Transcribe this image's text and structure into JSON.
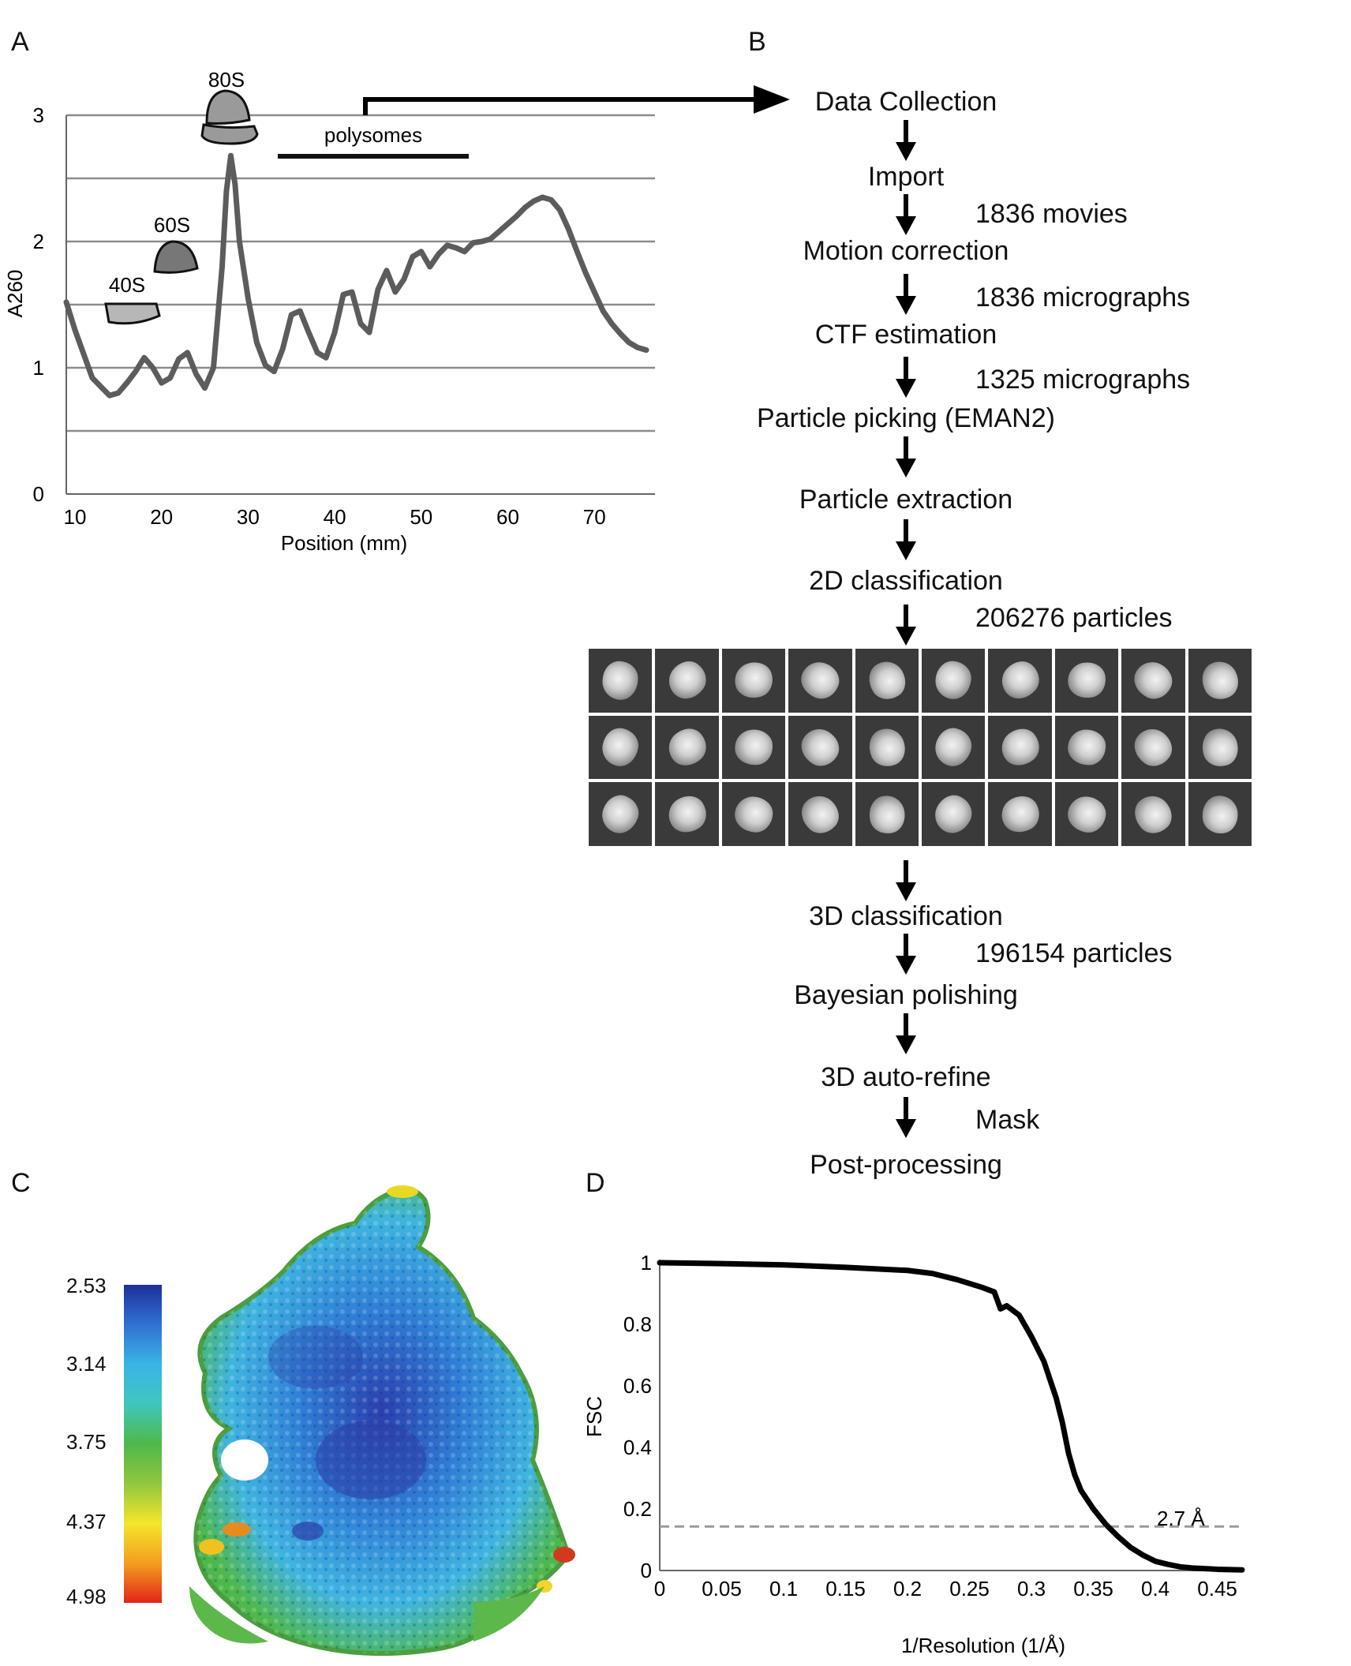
{
  "panels": {
    "a": "A",
    "b": "B",
    "c": "C",
    "d": "D"
  },
  "chart_data": [
    {
      "panel": "A",
      "type": "line",
      "xlabel": "Position (mm)",
      "ylabel": "A260",
      "xlim": [
        9,
        77
      ],
      "ylim": [
        0,
        3
      ],
      "xticks": [
        "10",
        "20",
        "30",
        "40",
        "50",
        "60",
        "70"
      ],
      "yticks": [
        "0",
        "1",
        "2",
        "3"
      ],
      "grid": true,
      "series": [
        {
          "x": [
            9,
            10,
            12,
            14,
            15,
            16,
            17,
            18,
            19,
            20,
            21,
            22,
            23,
            24,
            25,
            26,
            27,
            27.5,
            28,
            28.5,
            29,
            30,
            31,
            32,
            33,
            34,
            35,
            36,
            37,
            38,
            39,
            40,
            41,
            42,
            43,
            44,
            45,
            46,
            47,
            48,
            49,
            50,
            51,
            52,
            53,
            54,
            55,
            56,
            57,
            58,
            59,
            60,
            61,
            62,
            63,
            64,
            65,
            66,
            67,
            68,
            69,
            70,
            71,
            72,
            73,
            74,
            75,
            76
          ],
          "y": [
            1.52,
            1.3,
            0.92,
            0.78,
            0.8,
            0.88,
            0.97,
            1.08,
            1.0,
            0.88,
            0.92,
            1.07,
            1.12,
            0.95,
            0.84,
            1.0,
            1.8,
            2.4,
            2.68,
            2.45,
            2.0,
            1.55,
            1.2,
            1.02,
            0.97,
            1.15,
            1.42,
            1.45,
            1.28,
            1.12,
            1.08,
            1.28,
            1.58,
            1.6,
            1.35,
            1.28,
            1.62,
            1.77,
            1.6,
            1.7,
            1.88,
            1.92,
            1.8,
            1.9,
            1.97,
            1.95,
            1.92,
            1.99,
            2.0,
            2.02,
            2.08,
            2.14,
            2.2,
            2.27,
            2.32,
            2.35,
            2.33,
            2.25,
            2.1,
            1.92,
            1.75,
            1.6,
            1.45,
            1.35,
            1.27,
            1.2,
            1.16,
            1.14
          ]
        }
      ],
      "annotations": [
        {
          "label": "40S",
          "x": 16.5,
          "y": 1.47
        },
        {
          "label": "60S",
          "x": 21,
          "y": 1.87
        },
        {
          "label": "80S",
          "x": 27.2,
          "y": 2.95
        },
        {
          "label": "polysomes",
          "x": 44.5,
          "y": 2.68
        }
      ],
      "polysomes_bar": {
        "x": [
          34,
          56
        ],
        "y": 2.68
      }
    },
    {
      "panel": "D",
      "type": "line",
      "xlabel": "1/Resolution (1/Å)",
      "ylabel": "FSC",
      "xlim": [
        0,
        0.47
      ],
      "ylim": [
        0,
        1
      ],
      "xticks": [
        "0",
        "0.05",
        "0.1",
        "0.15",
        "0.2",
        "0.25",
        "0.3",
        "0.35",
        "0.4",
        "0.45"
      ],
      "yticks": [
        "0",
        "0.2",
        "0.4",
        "0.6",
        "0.8",
        "1"
      ],
      "threshold": {
        "y": 0.143,
        "label": "2.7 Å"
      },
      "series": [
        {
          "x": [
            0,
            0.05,
            0.1,
            0.15,
            0.2,
            0.22,
            0.24,
            0.26,
            0.27,
            0.275,
            0.28,
            0.29,
            0.3,
            0.31,
            0.32,
            0.325,
            0.33,
            0.335,
            0.34,
            0.35,
            0.36,
            0.37,
            0.38,
            0.39,
            0.4,
            0.41,
            0.42,
            0.43,
            0.44,
            0.45,
            0.46,
            0.47
          ],
          "y": [
            1,
            0.997,
            0.993,
            0.985,
            0.975,
            0.965,
            0.945,
            0.92,
            0.905,
            0.85,
            0.86,
            0.83,
            0.76,
            0.68,
            0.56,
            0.48,
            0.38,
            0.31,
            0.26,
            0.2,
            0.15,
            0.11,
            0.075,
            0.05,
            0.03,
            0.02,
            0.012,
            0.008,
            0.006,
            0.004,
            0.003,
            0.002
          ]
        }
      ]
    }
  ],
  "flow": {
    "steps": [
      "Data Collection",
      "Import",
      "Motion correction",
      "CTF estimation",
      "Particle picking (EMAN2)",
      "Particle extraction",
      "2D classification",
      "3D classification",
      "Bayesian polishing",
      "3D auto-refine",
      "Post-processing"
    ],
    "notes": [
      "1836 movies",
      "1836 micrographs",
      "1325 micrographs",
      "206276 particles",
      "196154 particles",
      "Mask"
    ]
  },
  "colorbar": {
    "ticks": [
      "2.53",
      "3.14",
      "3.75",
      "4.37",
      "4.98"
    ],
    "colors": [
      "#1e2f9b",
      "#39b4e6",
      "#4fb84a",
      "#f4e62a",
      "#e2231a"
    ]
  },
  "class_averages": {
    "rows": 3,
    "cols": 10
  }
}
